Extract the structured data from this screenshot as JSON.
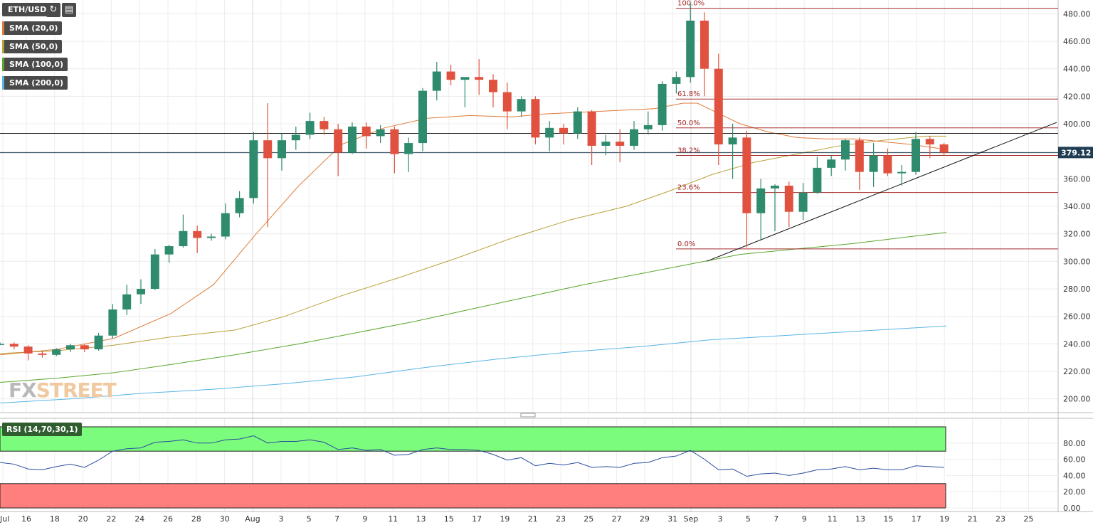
{
  "toolbar": {
    "symbol": "ETH/USD",
    "refresh_icon": "refresh-icon",
    "calendar_icon": "calendar-icon"
  },
  "indicators": [
    {
      "label": "SMA (20,0)",
      "color": "#e07b39"
    },
    {
      "label": "SMA (50,0)",
      "color": "#b8a13a"
    },
    {
      "label": "SMA (100,0)",
      "color": "#5aa62c"
    },
    {
      "label": "SMA (200,0)",
      "color": "#5ab4e6"
    }
  ],
  "logo": {
    "part1": "FX",
    "part2": "STREET"
  },
  "colors": {
    "up": "#2e8b6e",
    "down": "#e0523f",
    "fib": "#a52a2a",
    "rsi_line": "#2b4ca0",
    "rsi_over": "#7cfc7c",
    "rsi_under": "#ff7f7f",
    "price_tag": "#1f3d52"
  },
  "chart_data": {
    "type": "candlestick",
    "ylim": [
      190,
      490
    ],
    "y_ticks": [
      "200.00",
      "220.00",
      "240.00",
      "260.00",
      "280.00",
      "300.00",
      "320.00",
      "340.00",
      "360.00",
      "380.00",
      "400.00",
      "420.00",
      "440.00",
      "460.00",
      "480.00"
    ],
    "x_tick_labels": [
      "Jul",
      "16",
      "18",
      "20",
      "22",
      "24",
      "26",
      "28",
      "30",
      "Aug",
      "3",
      "5",
      "7",
      "9",
      "11",
      "13",
      "15",
      "17",
      "19",
      "21",
      "23",
      "25",
      "27",
      "29",
      "31",
      "Sep",
      "3",
      "5",
      "7",
      "9",
      "11",
      "13",
      "15",
      "17",
      "19",
      "21",
      "23",
      "25"
    ],
    "current_price": "379.12",
    "candles": [
      {
        "o": 240,
        "h": 241,
        "l": 239,
        "c": 240
      },
      {
        "o": 240,
        "h": 241,
        "l": 236,
        "c": 238
      },
      {
        "o": 238,
        "h": 239,
        "l": 228,
        "c": 233
      },
      {
        "o": 233,
        "h": 235,
        "l": 230,
        "c": 232
      },
      {
        "o": 232,
        "h": 237,
        "l": 231,
        "c": 236
      },
      {
        "o": 236,
        "h": 240,
        "l": 234,
        "c": 239
      },
      {
        "o": 239,
        "h": 240,
        "l": 234,
        "c": 236
      },
      {
        "o": 236,
        "h": 248,
        "l": 235,
        "c": 246
      },
      {
        "o": 246,
        "h": 269,
        "l": 244,
        "c": 265
      },
      {
        "o": 265,
        "h": 283,
        "l": 261,
        "c": 276
      },
      {
        "o": 276,
        "h": 287,
        "l": 269,
        "c": 280
      },
      {
        "o": 280,
        "h": 309,
        "l": 279,
        "c": 305
      },
      {
        "o": 305,
        "h": 312,
        "l": 299,
        "c": 311
      },
      {
        "o": 311,
        "h": 334,
        "l": 310,
        "c": 322
      },
      {
        "o": 322,
        "h": 326,
        "l": 306,
        "c": 317
      },
      {
        "o": 317,
        "h": 320,
        "l": 315,
        "c": 318
      },
      {
        "o": 318,
        "h": 342,
        "l": 316,
        "c": 335
      },
      {
        "o": 335,
        "h": 351,
        "l": 332,
        "c": 346
      },
      {
        "o": 346,
        "h": 394,
        "l": 342,
        "c": 388
      },
      {
        "o": 388,
        "h": 415,
        "l": 325,
        "c": 375
      },
      {
        "o": 375,
        "h": 393,
        "l": 366,
        "c": 388
      },
      {
        "o": 388,
        "h": 398,
        "l": 381,
        "c": 392
      },
      {
        "o": 392,
        "h": 408,
        "l": 389,
        "c": 402
      },
      {
        "o": 402,
        "h": 405,
        "l": 392,
        "c": 396
      },
      {
        "o": 396,
        "h": 400,
        "l": 362,
        "c": 379
      },
      {
        "o": 379,
        "h": 401,
        "l": 378,
        "c": 398
      },
      {
        "o": 398,
        "h": 401,
        "l": 382,
        "c": 391
      },
      {
        "o": 391,
        "h": 399,
        "l": 386,
        "c": 396
      },
      {
        "o": 396,
        "h": 398,
        "l": 364,
        "c": 378
      },
      {
        "o": 378,
        "h": 390,
        "l": 365,
        "c": 386
      },
      {
        "o": 386,
        "h": 426,
        "l": 380,
        "c": 424
      },
      {
        "o": 424,
        "h": 445,
        "l": 417,
        "c": 438
      },
      {
        "o": 438,
        "h": 443,
        "l": 428,
        "c": 432
      },
      {
        "o": 432,
        "h": 433,
        "l": 412,
        "c": 434
      },
      {
        "o": 434,
        "h": 447,
        "l": 421,
        "c": 432
      },
      {
        "o": 432,
        "h": 436,
        "l": 412,
        "c": 423
      },
      {
        "o": 423,
        "h": 430,
        "l": 396,
        "c": 409
      },
      {
        "o": 409,
        "h": 420,
        "l": 405,
        "c": 418
      },
      {
        "o": 418,
        "h": 420,
        "l": 385,
        "c": 390
      },
      {
        "o": 390,
        "h": 402,
        "l": 380,
        "c": 397
      },
      {
        "o": 397,
        "h": 400,
        "l": 385,
        "c": 393
      },
      {
        "o": 393,
        "h": 412,
        "l": 389,
        "c": 409
      },
      {
        "o": 409,
        "h": 410,
        "l": 370,
        "c": 384
      },
      {
        "o": 384,
        "h": 392,
        "l": 377,
        "c": 387
      },
      {
        "o": 387,
        "h": 396,
        "l": 372,
        "c": 384
      },
      {
        "o": 384,
        "h": 402,
        "l": 381,
        "c": 396
      },
      {
        "o": 396,
        "h": 409,
        "l": 392,
        "c": 399
      },
      {
        "o": 399,
        "h": 431,
        "l": 395,
        "c": 429
      },
      {
        "o": 429,
        "h": 438,
        "l": 422,
        "c": 434
      },
      {
        "o": 434,
        "h": 488,
        "l": 430,
        "c": 475
      },
      {
        "o": 475,
        "h": 481,
        "l": 420,
        "c": 440
      },
      {
        "o": 440,
        "h": 451,
        "l": 370,
        "c": 385
      },
      {
        "o": 385,
        "h": 400,
        "l": 360,
        "c": 390
      },
      {
        "o": 390,
        "h": 395,
        "l": 310,
        "c": 335
      },
      {
        "o": 335,
        "h": 360,
        "l": 315,
        "c": 353
      },
      {
        "o": 353,
        "h": 356,
        "l": 322,
        "c": 355
      },
      {
        "o": 355,
        "h": 358,
        "l": 325,
        "c": 336
      },
      {
        "o": 336,
        "h": 357,
        "l": 330,
        "c": 350
      },
      {
        "o": 350,
        "h": 376,
        "l": 349,
        "c": 368
      },
      {
        "o": 368,
        "h": 377,
        "l": 362,
        "c": 374
      },
      {
        "o": 374,
        "h": 389,
        "l": 366,
        "c": 388
      },
      {
        "o": 388,
        "h": 390,
        "l": 352,
        "c": 365
      },
      {
        "o": 365,
        "h": 386,
        "l": 354,
        "c": 377
      },
      {
        "o": 377,
        "h": 382,
        "l": 362,
        "c": 364
      },
      {
        "o": 364,
        "h": 370,
        "l": 355,
        "c": 365
      },
      {
        "o": 365,
        "h": 394,
        "l": 363,
        "c": 389
      },
      {
        "o": 389,
        "h": 391,
        "l": 375,
        "c": 385
      },
      {
        "o": 385,
        "h": 386,
        "l": 377,
        "c": 379
      }
    ],
    "sma20": [
      [
        0,
        232
      ],
      [
        40,
        234
      ],
      [
        80,
        236
      ],
      [
        160,
        244
      ],
      [
        240,
        262
      ],
      [
        300,
        283
      ],
      [
        360,
        320
      ],
      [
        420,
        355
      ],
      [
        480,
        385
      ],
      [
        540,
        397
      ],
      [
        600,
        404
      ],
      [
        660,
        406
      ],
      [
        720,
        405
      ],
      [
        760,
        407
      ],
      [
        800,
        408
      ],
      [
        840,
        409
      ],
      [
        880,
        410
      ],
      [
        920,
        411
      ],
      [
        960,
        415
      ],
      [
        980,
        415
      ],
      [
        1000,
        410
      ],
      [
        1040,
        400
      ],
      [
        1080,
        394
      ],
      [
        1120,
        390
      ],
      [
        1160,
        389
      ],
      [
        1200,
        389
      ],
      [
        1240,
        387
      ],
      [
        1280,
        385
      ],
      [
        1320,
        382
      ]
    ],
    "sma50": [
      [
        0,
        233
      ],
      [
        80,
        235
      ],
      [
        160,
        239
      ],
      [
        240,
        245
      ],
      [
        330,
        250
      ],
      [
        400,
        260
      ],
      [
        480,
        275
      ],
      [
        560,
        288
      ],
      [
        640,
        302
      ],
      [
        720,
        317
      ],
      [
        800,
        330
      ],
      [
        880,
        340
      ],
      [
        940,
        351
      ],
      [
        1000,
        363
      ],
      [
        1060,
        372
      ],
      [
        1120,
        378
      ],
      [
        1180,
        384
      ],
      [
        1240,
        388
      ],
      [
        1300,
        391
      ],
      [
        1330,
        391
      ]
    ],
    "sma100": [
      [
        0,
        212
      ],
      [
        80,
        215
      ],
      [
        160,
        219
      ],
      [
        240,
        225
      ],
      [
        330,
        232
      ],
      [
        420,
        240
      ],
      [
        500,
        248
      ],
      [
        580,
        256
      ],
      [
        660,
        265
      ],
      [
        740,
        274
      ],
      [
        820,
        283
      ],
      [
        900,
        291
      ],
      [
        960,
        297
      ],
      [
        1040,
        305
      ],
      [
        1120,
        309
      ],
      [
        1200,
        313
      ],
      [
        1280,
        318
      ],
      [
        1330,
        321
      ]
    ],
    "sma200": [
      [
        0,
        197
      ],
      [
        100,
        200
      ],
      [
        200,
        204
      ],
      [
        300,
        207
      ],
      [
        400,
        211
      ],
      [
        500,
        216
      ],
      [
        600,
        223
      ],
      [
        700,
        229
      ],
      [
        800,
        234
      ],
      [
        900,
        238
      ],
      [
        1000,
        243
      ],
      [
        1100,
        246
      ],
      [
        1200,
        249
      ],
      [
        1330,
        253
      ]
    ],
    "fibonacci": [
      {
        "label": "100.0%",
        "value": 484
      },
      {
        "label": "61.8%",
        "value": 418
      },
      {
        "label": "50.0%",
        "value": 397
      },
      {
        "label": "38.2%",
        "value": 377
      },
      {
        "label": "23.6%",
        "value": 350
      },
      {
        "label": "0.0%",
        "value": 309
      }
    ],
    "horizontal_lines": [
      393,
      379
    ],
    "trendline": {
      "from": [
        993,
        300
      ],
      "to": [
        1485,
        401
      ]
    },
    "rsi": {
      "label": "RSI (14,70,30,1)",
      "ylim": [
        0,
        100
      ],
      "y_ticks": [
        "0.00",
        "20.00",
        "40.00",
        "60.00",
        "80.00"
      ],
      "overbought": 70,
      "oversold": 30,
      "values": [
        56,
        54,
        48,
        47,
        51,
        54,
        50,
        59,
        70,
        73,
        74,
        81,
        82,
        84,
        80,
        80,
        84,
        85,
        89,
        80,
        82,
        82,
        84,
        81,
        72,
        74,
        71,
        72,
        65,
        66,
        72,
        74,
        72,
        72,
        71,
        66,
        59,
        62,
        52,
        55,
        53,
        56,
        50,
        51,
        50,
        55,
        56,
        62,
        64,
        71,
        60,
        47,
        48,
        39,
        42,
        43,
        40,
        43,
        47,
        48,
        51,
        47,
        49,
        47,
        47,
        52,
        51,
        50
      ]
    }
  }
}
